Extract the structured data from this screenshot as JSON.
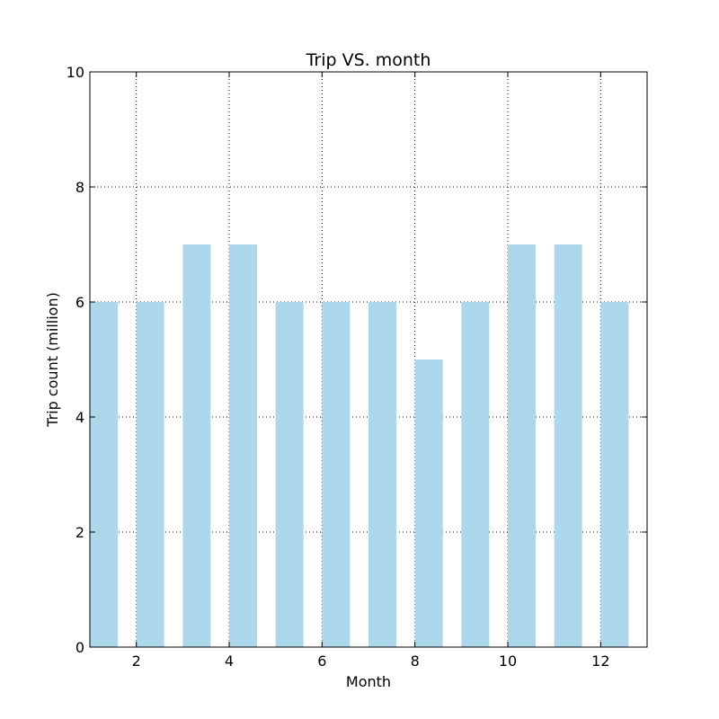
{
  "chart_data": {
    "type": "bar",
    "title": "Trip VS. month",
    "xlabel": "Month",
    "ylabel": "Trip count (million)",
    "x": [
      1,
      2,
      3,
      4,
      5,
      6,
      7,
      8,
      9,
      10,
      11,
      12
    ],
    "values": [
      6,
      6,
      7,
      7,
      6,
      6,
      6,
      5,
      6,
      7,
      7,
      6
    ],
    "bar_width": 0.6,
    "xlim": [
      1,
      13
    ],
    "ylim": [
      0,
      10
    ],
    "xticks": [
      2,
      4,
      6,
      8,
      10,
      12
    ],
    "yticks": [
      0,
      2,
      4,
      6,
      8,
      10
    ],
    "grid": true,
    "bar_color": "#add8ec"
  }
}
